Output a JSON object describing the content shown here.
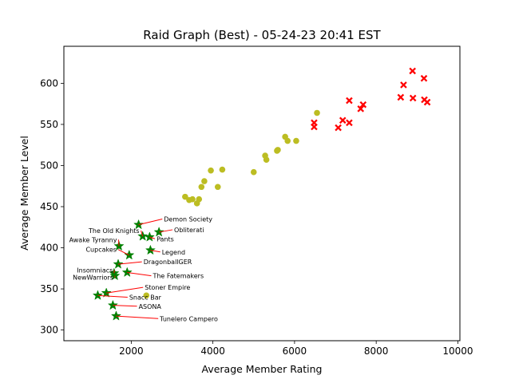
{
  "chart_data": {
    "type": "scatter",
    "title": "Raid Graph (Best) - 05-24-23 20:41 EST",
    "xlabel": "Average Member Rating",
    "ylabel": "Average Member Level",
    "xlim": [
      350,
      10050
    ],
    "ylim": [
      287,
      645
    ],
    "xticks": [
      2000,
      4000,
      6000,
      8000,
      10000
    ],
    "yticks": [
      300,
      350,
      400,
      450,
      500,
      550,
      600
    ],
    "grid": false,
    "series": [
      {
        "marker": "star",
        "color": "#008000",
        "points": [
          {
            "x": 2180,
            "y": 428,
            "label": "Demon Society"
          },
          {
            "x": 2680,
            "y": 419,
            "label": "Obliterati"
          },
          {
            "x": 2280,
            "y": 414,
            "label": "The Old Knights"
          },
          {
            "x": 2450,
            "y": 413,
            "label": "Pants"
          },
          {
            "x": 1700,
            "y": 402,
            "label": "Awake Tyranny"
          },
          {
            "x": 2470,
            "y": 397,
            "label": "Legend"
          },
          {
            "x": 1950,
            "y": 391,
            "label": "Cupcakes"
          },
          {
            "x": 1680,
            "y": 380,
            "label": "DragonballGER"
          },
          {
            "x": 1900,
            "y": 370,
            "label": "The Fatemakers"
          },
          {
            "x": 1580,
            "y": 369,
            "label": "Insomniacs"
          },
          {
            "x": 1600,
            "y": 366,
            "label": "NewWarriors"
          },
          {
            "x": 1390,
            "y": 345,
            "label": "Stoner Empire"
          },
          {
            "x": 1180,
            "y": 342,
            "label": "Snacc Bar"
          },
          {
            "x": 1550,
            "y": 330,
            "label": "ASONA"
          },
          {
            "x": 1630,
            "y": 317,
            "label": "Tunelero Campero"
          }
        ]
      },
      {
        "marker": "circle",
        "color": "#bcbd22",
        "points": [
          {
            "x": 2370,
            "y": 342
          },
          {
            "x": 3320,
            "y": 462
          },
          {
            "x": 3420,
            "y": 458
          },
          {
            "x": 3500,
            "y": 459
          },
          {
            "x": 3610,
            "y": 454
          },
          {
            "x": 3660,
            "y": 459
          },
          {
            "x": 3720,
            "y": 474
          },
          {
            "x": 3790,
            "y": 481
          },
          {
            "x": 3950,
            "y": 494
          },
          {
            "x": 4120,
            "y": 474
          },
          {
            "x": 4230,
            "y": 495
          },
          {
            "x": 5000,
            "y": 492
          },
          {
            "x": 5280,
            "y": 512
          },
          {
            "x": 5310,
            "y": 507
          },
          {
            "x": 5570,
            "y": 518
          },
          {
            "x": 5590,
            "y": 519
          },
          {
            "x": 5770,
            "y": 535
          },
          {
            "x": 5830,
            "y": 530
          },
          {
            "x": 6040,
            "y": 530
          },
          {
            "x": 6550,
            "y": 564
          }
        ]
      },
      {
        "marker": "x",
        "color": "#ff0000",
        "points": [
          {
            "x": 6480,
            "y": 552
          },
          {
            "x": 6480,
            "y": 547
          },
          {
            "x": 7070,
            "y": 546
          },
          {
            "x": 7180,
            "y": 555
          },
          {
            "x": 7340,
            "y": 579
          },
          {
            "x": 7340,
            "y": 552
          },
          {
            "x": 7620,
            "y": 569
          },
          {
            "x": 7680,
            "y": 574
          },
          {
            "x": 8600,
            "y": 583
          },
          {
            "x": 8670,
            "y": 598
          },
          {
            "x": 8890,
            "y": 615
          },
          {
            "x": 8900,
            "y": 582
          },
          {
            "x": 9170,
            "y": 606
          },
          {
            "x": 9180,
            "y": 580
          },
          {
            "x": 9250,
            "y": 577
          }
        ]
      }
    ],
    "annotations": [
      {
        "text": "Demon Society",
        "tx": 2800,
        "ty": 432,
        "ha": "left"
      },
      {
        "text": "Obliterati",
        "tx": 3050,
        "ty": 419,
        "ha": "left"
      },
      {
        "text": "The Old Knights",
        "tx": 2200,
        "ty": 418,
        "ha": "right"
      },
      {
        "text": "Pants",
        "tx": 2620,
        "ty": 408,
        "ha": "left"
      },
      {
        "text": "Awake Tyranny",
        "tx": 1650,
        "ty": 407,
        "ha": "right"
      },
      {
        "text": "Legend",
        "tx": 2750,
        "ty": 392,
        "ha": "left"
      },
      {
        "text": "Cupcakes",
        "tx": 1640,
        "ty": 395,
        "ha": "right"
      },
      {
        "text": "DragonballGER",
        "tx": 2300,
        "ty": 380,
        "ha": "left"
      },
      {
        "text": "The Fatemakers",
        "tx": 2530,
        "ty": 363,
        "ha": "left"
      },
      {
        "text": "Insomniacs",
        "tx": 1550,
        "ty": 370,
        "ha": "right"
      },
      {
        "text": "NewWarriors",
        "tx": 1560,
        "ty": 361,
        "ha": "right"
      },
      {
        "text": "Stoner Empire",
        "tx": 2330,
        "ty": 349,
        "ha": "left"
      },
      {
        "text": "Snacc Bar",
        "tx": 1950,
        "ty": 337,
        "ha": "left"
      },
      {
        "text": "ASONA",
        "tx": 2180,
        "ty": 326,
        "ha": "left"
      },
      {
        "text": "Tunelero Campero",
        "tx": 2700,
        "ty": 311,
        "ha": "left"
      }
    ]
  }
}
